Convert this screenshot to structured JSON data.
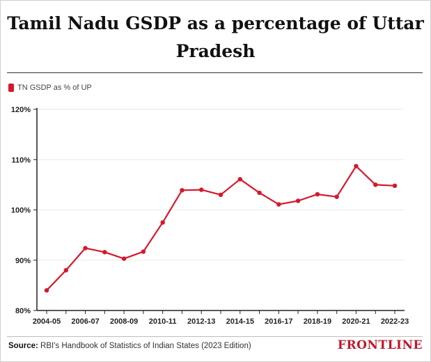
{
  "chart_data": {
    "type": "line",
    "title": "Tamil Nadu GSDP as a percentage of Uttar Pradesh",
    "xlabel": "",
    "ylabel": "",
    "x": [
      "2004-05",
      "2005-06",
      "2006-07",
      "2007-08",
      "2008-09",
      "2009-10",
      "2010-11",
      "2011-12",
      "2012-13",
      "2013-14",
      "2014-15",
      "2015-16",
      "2016-17",
      "2017-18",
      "2018-19",
      "2019-20",
      "2020-21",
      "2021-22",
      "2022-23"
    ],
    "x_tick_labels": [
      "2004-05",
      "2006-07",
      "2008-09",
      "2010-11",
      "2012-13",
      "2014-15",
      "2016-17",
      "2018-19",
      "2020-21",
      "2022-23"
    ],
    "series": [
      {
        "name": "TN GSDP as % of UP",
        "color": "#d7172b",
        "values": [
          84.0,
          88.0,
          92.4,
          91.6,
          90.3,
          91.7,
          97.5,
          103.9,
          104.0,
          103.0,
          106.1,
          103.4,
          101.1,
          101.8,
          103.1,
          102.6,
          108.7,
          105.0,
          104.8
        ]
      }
    ],
    "y_ticks": [
      80,
      90,
      100,
      110,
      120
    ],
    "y_tick_labels": [
      "80%",
      "90%",
      "100%",
      "110%",
      "120%"
    ],
    "ylim": [
      80,
      120
    ],
    "grid": true,
    "legend_position": "top-left"
  },
  "footer": {
    "source_label": "Source:",
    "source_text": "RBI's Handbook of Statistics of Indian States (2023 Edition)",
    "brand": "FRONTLINE"
  },
  "colors": {
    "line": "#d7172b",
    "brand": "#c0172d",
    "grid": "#eaeaea"
  }
}
